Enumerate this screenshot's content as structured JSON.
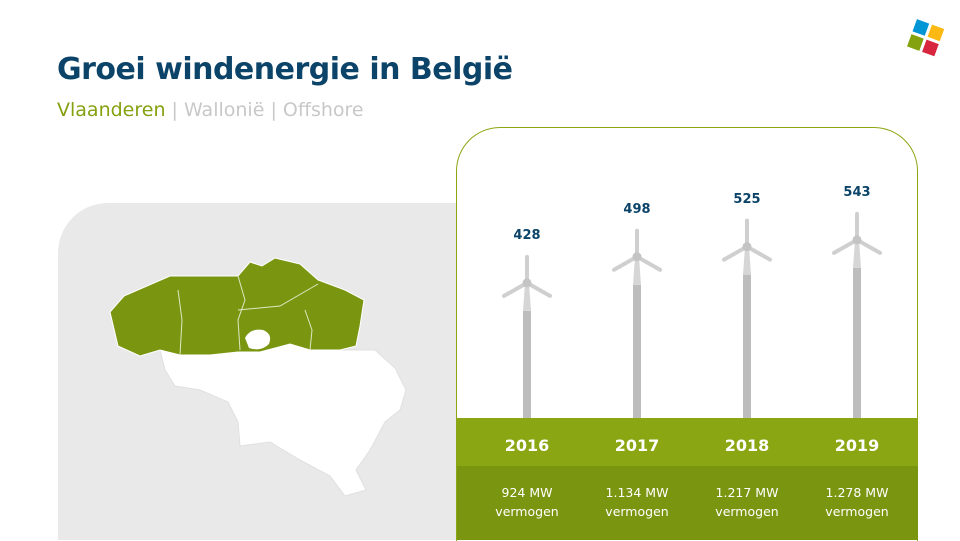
{
  "header": {
    "title": "Groei windenergie in België",
    "tabs": [
      "Vlaanderen",
      "Wallonië",
      "Offshore"
    ],
    "separator": "|",
    "active_tab": "Vlaanderen"
  },
  "logo": {
    "colors": [
      "#0096d6",
      "#fdb913",
      "#84a10f",
      "#d7263d"
    ]
  },
  "colors": {
    "accent": "#84a10f",
    "title": "#0b4468",
    "tower": "#bdbdbd"
  },
  "chart_data": {
    "type": "bar",
    "categories": [
      "2016",
      "2017",
      "2018",
      "2019"
    ],
    "values": [
      428,
      498,
      525,
      543
    ],
    "value_labels": [
      "428",
      "498",
      "525",
      "543"
    ],
    "capacity_labels": [
      "924 MW",
      "1.134 MW",
      "1.217 MW",
      "1.278 MW"
    ],
    "capacity_unit_label": "vermogen",
    "mark": "wind-turbine"
  }
}
